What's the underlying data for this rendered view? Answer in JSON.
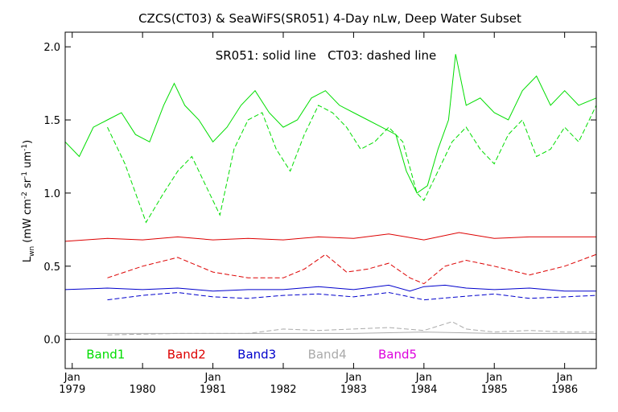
{
  "chart_data": {
    "type": "line",
    "title": "CZCS(CT03) & SeaWiFS(SR051) 4-Day nLw, Deep Water Subset",
    "note": "SR051: solid line   CT03: dashed line",
    "ylabel_parts": [
      "L",
      "wn",
      " (mW cm",
      "-2",
      " sr",
      "-1",
      " um",
      "-1",
      ")"
    ],
    "ylim": [
      -0.2,
      2.1
    ],
    "yticks": [
      {
        "value": 0.0,
        "label": "0.0"
      },
      {
        "value": 0.5,
        "label": "0.5"
      },
      {
        "value": 1.0,
        "label": "1.0"
      },
      {
        "value": 1.5,
        "label": "1.5"
      },
      {
        "value": 2.0,
        "label": "2.0"
      }
    ],
    "xlim": [
      1978.9,
      1986.45
    ],
    "xticks": [
      {
        "value": 1979.0,
        "month": "Jan",
        "year": "1979"
      },
      {
        "value": 1980.0,
        "month": "",
        "year": "1980"
      },
      {
        "value": 1981.0,
        "month": "Jan",
        "year": "1981"
      },
      {
        "value": 1982.0,
        "month": "",
        "year": "1982"
      },
      {
        "value": 1983.0,
        "month": "Jan",
        "year": "1983"
      },
      {
        "value": 1984.0,
        "month": "Jan",
        "year": "1984"
      },
      {
        "value": 1985.0,
        "month": "Jan",
        "year": "1985"
      },
      {
        "value": 1986.0,
        "month": "Jan",
        "year": "1986"
      }
    ],
    "zero_line": 0.0,
    "bands": [
      {
        "name": "Band1",
        "color": "#00dd00",
        "label_x": 1979.2
      },
      {
        "name": "Band2",
        "color": "#dd0000",
        "label_x": 1980.35
      },
      {
        "name": "Band3",
        "color": "#0000cc",
        "label_x": 1981.35
      },
      {
        "name": "Band4",
        "color": "#aaaaaa",
        "label_x": 1982.35
      },
      {
        "name": "Band5",
        "color": "#dd00dd",
        "label_x": 1983.35
      }
    ],
    "series": [
      {
        "band": "Band1",
        "style": "solid",
        "x": [
          1978.9,
          1979.1,
          1979.3,
          1979.5,
          1979.7,
          1979.9,
          1980.1,
          1980.3,
          1980.45,
          1980.6,
          1980.8,
          1981.0,
          1981.2,
          1981.4,
          1981.6,
          1981.8,
          1982.0,
          1982.2,
          1982.4,
          1982.6,
          1982.8,
          1983.0,
          1983.2,
          1983.4,
          1983.6,
          1983.75,
          1983.9,
          1984.05,
          1984.2,
          1984.35,
          1984.45,
          1984.6,
          1984.8,
          1985.0,
          1985.2,
          1985.4,
          1985.6,
          1985.8,
          1986.0,
          1986.2,
          1986.45
        ],
        "y": [
          1.35,
          1.25,
          1.45,
          1.5,
          1.55,
          1.4,
          1.35,
          1.6,
          1.75,
          1.6,
          1.5,
          1.35,
          1.45,
          1.6,
          1.7,
          1.55,
          1.45,
          1.5,
          1.65,
          1.7,
          1.6,
          1.55,
          1.5,
          1.45,
          1.4,
          1.15,
          1.0,
          1.05,
          1.3,
          1.5,
          1.95,
          1.6,
          1.65,
          1.55,
          1.5,
          1.7,
          1.8,
          1.6,
          1.7,
          1.6,
          1.65
        ]
      },
      {
        "band": "Band1",
        "style": "dashed",
        "x": [
          1979.5,
          1979.75,
          1979.9,
          1980.05,
          1980.3,
          1980.5,
          1980.7,
          1980.9,
          1981.1,
          1981.3,
          1981.5,
          1981.7,
          1981.9,
          1982.1,
          1982.3,
          1982.5,
          1982.7,
          1982.9,
          1983.1,
          1983.3,
          1983.5,
          1983.7,
          1983.9,
          1984.0,
          1984.2,
          1984.4,
          1984.6,
          1984.8,
          1985.0,
          1985.2,
          1985.4,
          1985.6,
          1985.8,
          1986.0,
          1986.2,
          1986.45
        ],
        "y": [
          1.45,
          1.2,
          1.0,
          0.8,
          1.0,
          1.15,
          1.25,
          1.05,
          0.85,
          1.3,
          1.5,
          1.55,
          1.3,
          1.15,
          1.4,
          1.6,
          1.55,
          1.45,
          1.3,
          1.35,
          1.45,
          1.35,
          1.0,
          0.95,
          1.15,
          1.35,
          1.45,
          1.3,
          1.2,
          1.4,
          1.5,
          1.25,
          1.3,
          1.45,
          1.35,
          1.6
        ]
      },
      {
        "band": "Band2",
        "style": "solid",
        "x": [
          1978.9,
          1979.5,
          1980.0,
          1980.5,
          1981.0,
          1981.5,
          1982.0,
          1982.5,
          1983.0,
          1983.5,
          1984.0,
          1984.5,
          1985.0,
          1985.5,
          1986.0,
          1986.45
        ],
        "y": [
          0.67,
          0.69,
          0.68,
          0.7,
          0.68,
          0.69,
          0.68,
          0.7,
          0.69,
          0.72,
          0.68,
          0.73,
          0.69,
          0.7,
          0.7,
          0.7
        ]
      },
      {
        "band": "Band2",
        "style": "dashed",
        "x": [
          1979.5,
          1980.0,
          1980.5,
          1981.0,
          1981.5,
          1982.0,
          1982.3,
          1982.6,
          1982.9,
          1983.2,
          1983.5,
          1983.8,
          1984.0,
          1984.3,
          1984.6,
          1985.0,
          1985.5,
          1986.0,
          1986.45
        ],
        "y": [
          0.42,
          0.5,
          0.56,
          0.46,
          0.42,
          0.42,
          0.48,
          0.58,
          0.46,
          0.48,
          0.52,
          0.42,
          0.38,
          0.5,
          0.54,
          0.5,
          0.44,
          0.5,
          0.58
        ]
      },
      {
        "band": "Band3",
        "style": "solid",
        "x": [
          1978.9,
          1979.5,
          1980.0,
          1980.5,
          1981.0,
          1981.5,
          1982.0,
          1982.5,
          1983.0,
          1983.5,
          1983.8,
          1984.0,
          1984.3,
          1984.6,
          1985.0,
          1985.5,
          1986.0,
          1986.45
        ],
        "y": [
          0.34,
          0.35,
          0.34,
          0.35,
          0.33,
          0.34,
          0.34,
          0.36,
          0.34,
          0.37,
          0.33,
          0.36,
          0.37,
          0.35,
          0.34,
          0.35,
          0.33,
          0.33
        ]
      },
      {
        "band": "Band3",
        "style": "dashed",
        "x": [
          1979.5,
          1980.0,
          1980.5,
          1981.0,
          1981.5,
          1982.0,
          1982.5,
          1983.0,
          1983.5,
          1984.0,
          1984.5,
          1985.0,
          1985.5,
          1986.0,
          1986.45
        ],
        "y": [
          0.27,
          0.3,
          0.32,
          0.29,
          0.28,
          0.3,
          0.31,
          0.29,
          0.32,
          0.27,
          0.29,
          0.31,
          0.28,
          0.29,
          0.3
        ]
      },
      {
        "band": "Band4",
        "style": "solid",
        "x": [
          1978.9,
          1980.0,
          1981.0,
          1982.0,
          1983.0,
          1984.0,
          1985.0,
          1986.0,
          1986.45
        ],
        "y": [
          0.04,
          0.04,
          0.04,
          0.04,
          0.04,
          0.05,
          0.04,
          0.04,
          0.04
        ]
      },
      {
        "band": "Band4",
        "style": "dashed",
        "x": [
          1979.5,
          1980.5,
          1981.5,
          1982.0,
          1982.5,
          1983.0,
          1983.5,
          1984.0,
          1984.4,
          1984.6,
          1985.0,
          1985.5,
          1986.0,
          1986.45
        ],
        "y": [
          0.03,
          0.04,
          0.04,
          0.07,
          0.06,
          0.07,
          0.08,
          0.06,
          0.12,
          0.07,
          0.05,
          0.06,
          0.05,
          0.05
        ]
      }
    ]
  }
}
